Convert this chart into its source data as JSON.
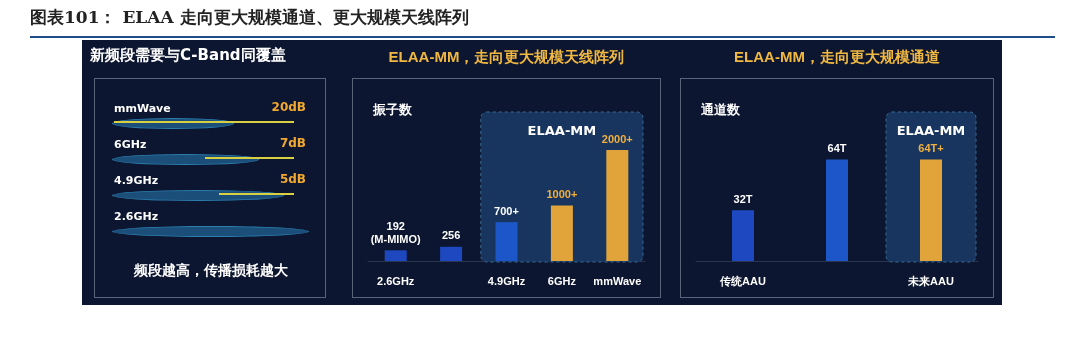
{
  "chart_data": [
    {
      "type": "other",
      "title": "图表101：  ELAA 走向更大规模通道、更大规模天线阵列",
      "subtitle": "新频段需要与C-Band同覆盖",
      "categories": [
        "mmWave",
        "6GHz",
        "4.9GHz",
        "2.6GHz"
      ],
      "values": [
        20,
        7,
        5,
        null
      ],
      "value_labels": [
        "20dB",
        "7dB",
        "5dB",
        null
      ],
      "annotations": [
        "频段越高，传播损耗越大"
      ]
    },
    {
      "type": "bar",
      "title": "ELAA-MM，走向更大规模天线阵列",
      "ylabel": "振子数",
      "categories": [
        "2.6GHz",
        null,
        "4.9GHz",
        "6GHz",
        "mmWave"
      ],
      "series": [
        {
          "values": [
            192,
            256,
            700,
            1000,
            2000
          ],
          "colors": [
            "#1d48c0",
            "#1d48c0",
            "#1d56c8",
            "#e0a43a",
            "#e0a43a"
          ],
          "value_labels": [
            "192\n(M-MIMO)",
            "256",
            "700+",
            "1000+",
            "2000+"
          ]
        }
      ],
      "bands": [
        {
          "axis": "x",
          "from": "4.9GHz",
          "to": "mmWave",
          "label": "ELAA-MM",
          "color": "#17355e"
        }
      ]
    },
    {
      "type": "bar",
      "title": "ELAA-MM，走向更大规模通道",
      "ylabel": "通道数",
      "categories": [
        "传统AAU",
        null,
        "未来AAU"
      ],
      "series": [
        {
          "values": [
            32,
            64,
            64
          ],
          "colors": [
            "#1d48c0",
            "#1d56c8",
            "#e0a43a"
          ],
          "value_labels": [
            "32T",
            "64T",
            "64T+"
          ]
        }
      ],
      "bands": [
        {
          "axis": "x",
          "from": "未来AAU",
          "to": "未来AAU",
          "label": "ELAA-MM",
          "color": "#17355e"
        }
      ]
    }
  ]
}
